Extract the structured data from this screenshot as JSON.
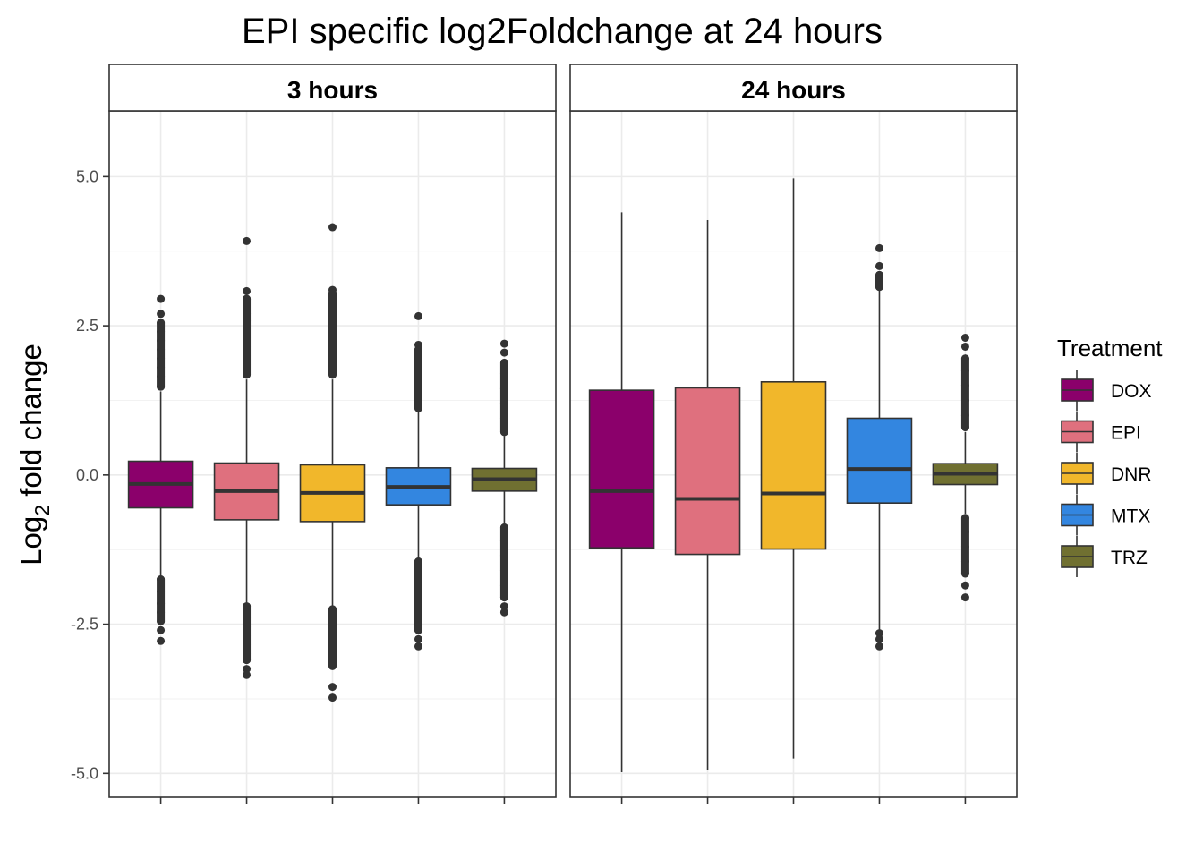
{
  "chart_data": {
    "type": "box",
    "title": "EPI specific log2Foldchange at 24 hours",
    "ylabel": "Log",
    "ylabel_subscript": "2",
    "ylabel_rest": " fold change",
    "ylim": [
      -5.4,
      6.1
    ],
    "yticks": [
      5.0,
      2.5,
      0.0,
      -2.5,
      -5.0
    ],
    "ytick_labels": [
      "5.0",
      "2.5",
      "0.0",
      "-2.5",
      "-5.0"
    ],
    "grid": true,
    "legend": {
      "title": "Treatment",
      "position": "right",
      "entries": [
        {
          "label": "DOX",
          "color": "#8B006B"
        },
        {
          "label": "EPI",
          "color": "#DF707E"
        },
        {
          "label": "DNR",
          "color": "#F1B72B"
        },
        {
          "label": "MTX",
          "color": "#3386E0"
        },
        {
          "label": "TRZ",
          "color": "#707031"
        }
      ]
    },
    "panels": [
      {
        "label": "3 hours",
        "boxes": [
          {
            "treatment": "DOX",
            "q1": -0.55,
            "median": -0.15,
            "q3": 0.23,
            "whisker_low": -1.7,
            "whisker_high": 1.4,
            "outliers_low": [
              -1.75,
              -1.95,
              -2.15,
              -2.3,
              -2.45,
              -2.6,
              -2.78
            ],
            "outliers_high": [
              1.48,
              1.65,
              1.8,
              1.95,
              2.1,
              2.25,
              2.4,
              2.55,
              2.7,
              2.95
            ]
          },
          {
            "treatment": "EPI",
            "q1": -0.75,
            "median": -0.27,
            "q3": 0.2,
            "whisker_low": -2.15,
            "whisker_high": 1.6,
            "outliers_low": [
              -2.2,
              -2.4,
              -2.55,
              -2.7,
              -2.85,
              -3.0,
              -3.1,
              -3.25,
              -3.35
            ],
            "outliers_high": [
              1.68,
              1.85,
              2.0,
              2.15,
              2.3,
              2.45,
              2.58,
              2.7,
              2.95,
              3.08,
              3.92
            ]
          },
          {
            "treatment": "DNR",
            "q1": -0.78,
            "median": -0.3,
            "q3": 0.17,
            "whisker_low": -2.2,
            "whisker_high": 1.6,
            "outliers_low": [
              -2.25,
              -2.45,
              -2.6,
              -2.75,
              -2.9,
              -3.05,
              -3.2,
              -3.55,
              -3.73
            ],
            "outliers_high": [
              1.68,
              1.85,
              2.05,
              2.2,
              2.35,
              2.5,
              2.65,
              2.8,
              2.95,
              3.05,
              3.1,
              4.15
            ]
          },
          {
            "treatment": "MTX",
            "q1": -0.5,
            "median": -0.2,
            "q3": 0.12,
            "whisker_low": -1.4,
            "whisker_high": 1.05,
            "outliers_low": [
              -1.45,
              -1.65,
              -1.85,
              -2.05,
              -2.25,
              -2.45,
              -2.6,
              -2.75,
              -2.87
            ],
            "outliers_high": [
              1.12,
              1.3,
              1.48,
              1.65,
              1.82,
              1.92,
              2.1,
              2.18,
              2.66
            ]
          },
          {
            "treatment": "TRZ",
            "q1": -0.27,
            "median": -0.07,
            "q3": 0.11,
            "whisker_low": -0.82,
            "whisker_high": 0.65,
            "outliers_low": [
              -0.88,
              -1.1,
              -1.35,
              -1.6,
              -1.85,
              -2.05,
              -2.2,
              -2.3
            ],
            "outliers_high": [
              0.72,
              0.95,
              1.2,
              1.45,
              1.7,
              1.88,
              2.05,
              2.2
            ]
          }
        ]
      },
      {
        "label": "24 hours",
        "boxes": [
          {
            "treatment": "DOX",
            "q1": -1.22,
            "median": -0.27,
            "q3": 1.42,
            "whisker_low": -4.98,
            "whisker_high": 4.4,
            "outliers_low": [],
            "outliers_high": []
          },
          {
            "treatment": "EPI",
            "q1": -1.33,
            "median": -0.4,
            "q3": 1.46,
            "whisker_low": -4.95,
            "whisker_high": 4.27,
            "outliers_low": [],
            "outliers_high": []
          },
          {
            "treatment": "DNR",
            "q1": -1.24,
            "median": -0.31,
            "q3": 1.56,
            "whisker_low": -4.75,
            "whisker_high": 4.97,
            "outliers_low": [],
            "outliers_high": []
          },
          {
            "treatment": "MTX",
            "q1": -0.47,
            "median": 0.1,
            "q3": 0.95,
            "whisker_low": -2.6,
            "whisker_high": 3.1,
            "outliers_low": [
              -2.65,
              -2.75,
              -2.87
            ],
            "outliers_high": [
              3.15,
              3.25,
              3.35,
              3.5,
              3.8
            ]
          },
          {
            "treatment": "TRZ",
            "q1": -0.16,
            "median": 0.02,
            "q3": 0.19,
            "whisker_low": -0.65,
            "whisker_high": 0.72,
            "outliers_low": [
              -0.72,
              -0.95,
              -1.2,
              -1.45,
              -1.65,
              -1.85,
              -2.05
            ],
            "outliers_high": [
              0.8,
              1.0,
              1.25,
              1.5,
              1.75,
              1.95,
              2.15,
              2.3
            ]
          }
        ]
      }
    ]
  }
}
